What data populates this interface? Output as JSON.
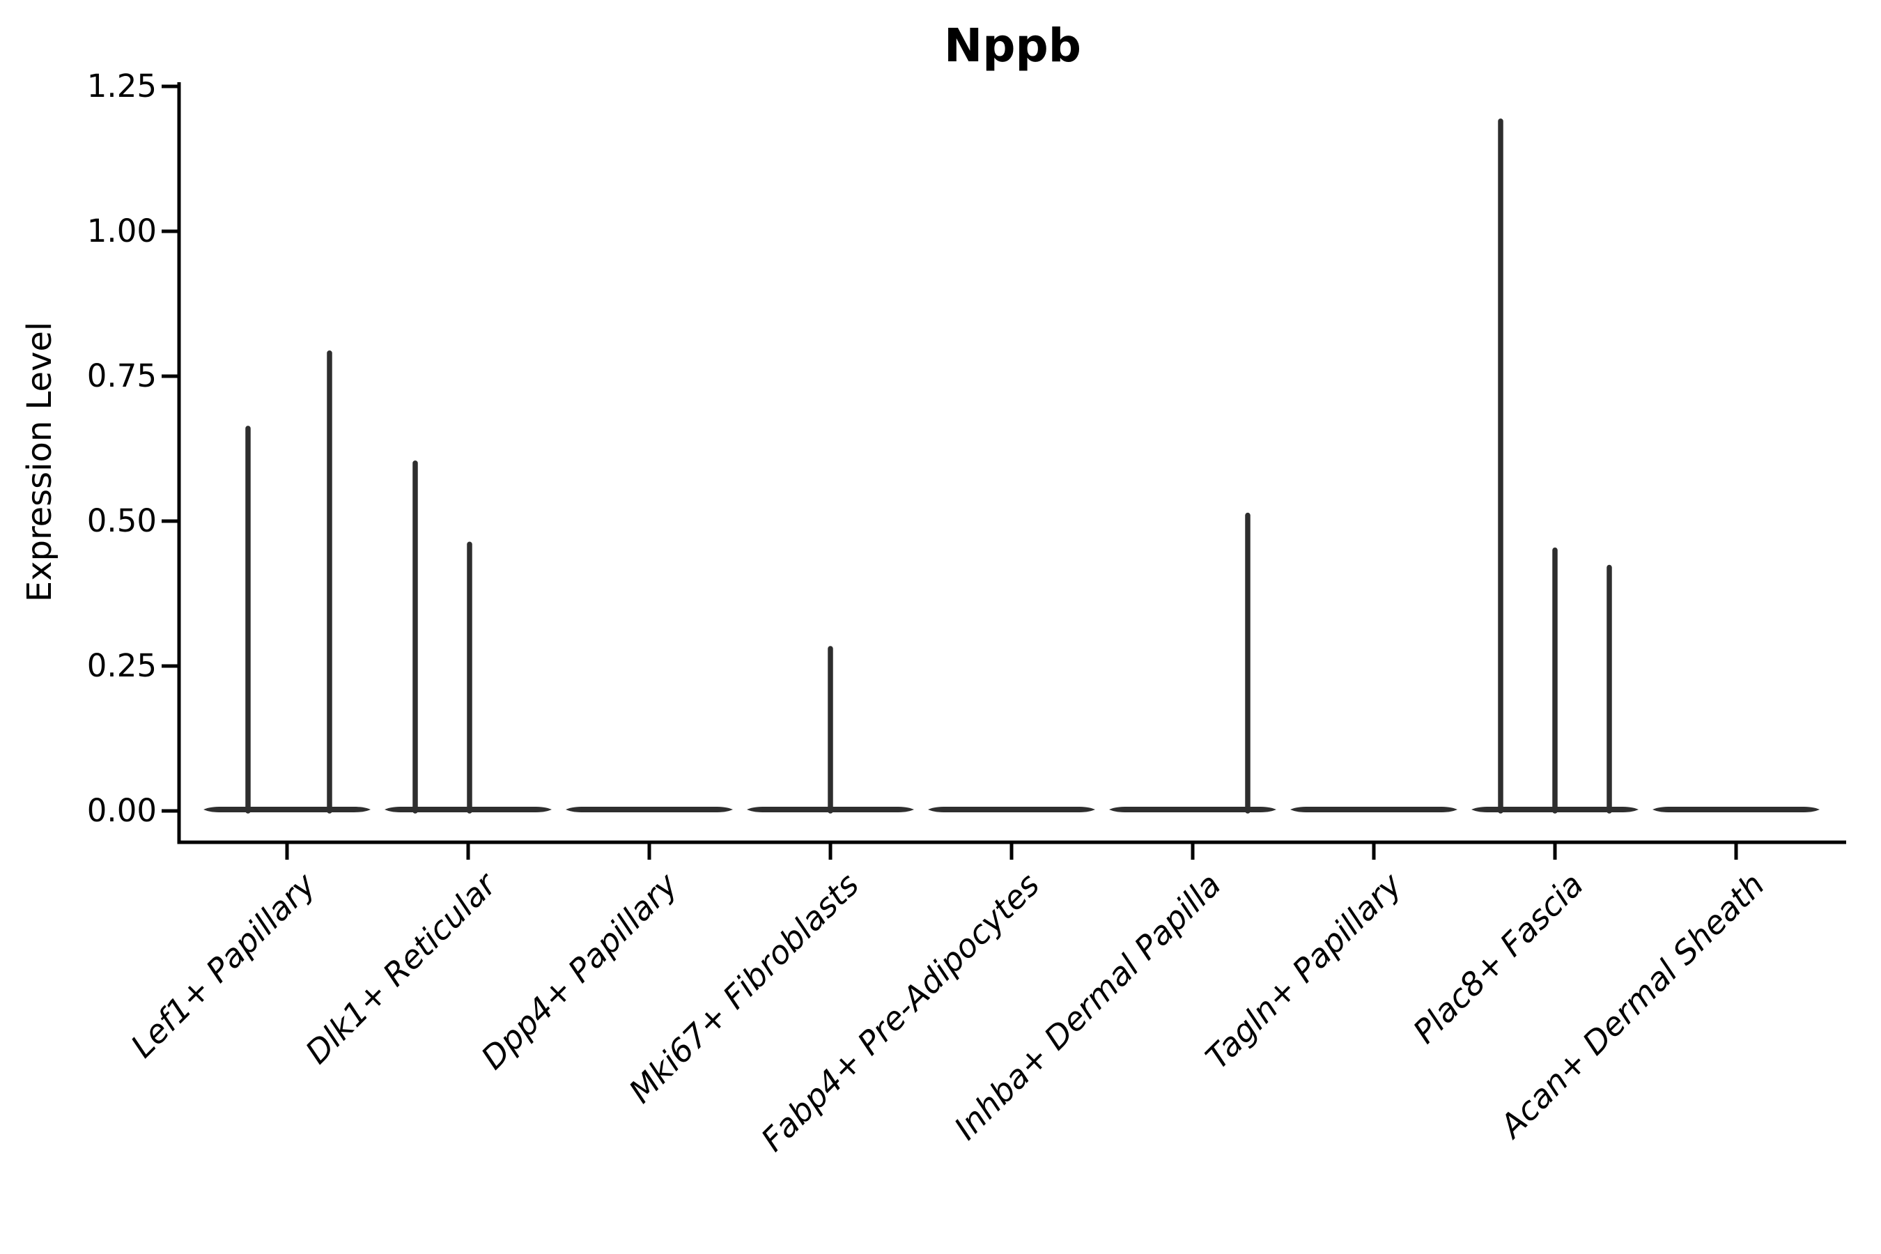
{
  "chart_data": {
    "type": "violin",
    "title": "Nppb",
    "ylabel": "Expression Level",
    "xlabel": "",
    "ylim": [
      0,
      1.25
    ],
    "yticks": [
      "1.25",
      "1.00",
      "0.75",
      "0.50",
      "0.25",
      "0.00"
    ],
    "ytick_values": [
      1.25,
      1.0,
      0.75,
      0.5,
      0.25,
      0.0
    ],
    "grid": "off",
    "legend": "none",
    "violin_color": "#2e2e2e",
    "axis_color": "#000000",
    "categories": [
      {
        "label": "Lef1+ Papillary",
        "spikes": [
          {
            "dx": -56,
            "value": 0.66
          },
          {
            "dx": 61,
            "value": 0.79
          }
        ]
      },
      {
        "label": "Dlk1+ Reticular",
        "spikes": [
          {
            "dx": -76,
            "value": 0.6
          },
          {
            "dx": 2,
            "value": 0.46
          }
        ]
      },
      {
        "label": "Dpp4+ Papillary",
        "spikes": []
      },
      {
        "label": "Mki67+ Fibroblasts",
        "spikes": [
          {
            "dx": 0,
            "value": 0.28
          }
        ]
      },
      {
        "label": "Fabp4+ Pre-Adipocytes",
        "spikes": []
      },
      {
        "label": "Inhba+ Dermal Papilla",
        "spikes": [
          {
            "dx": 79,
            "value": 0.51
          }
        ]
      },
      {
        "label": "Tagln+ Papillary",
        "spikes": []
      },
      {
        "label": "Plac8+ Fascia",
        "spikes": [
          {
            "dx": -78,
            "value": 1.19
          },
          {
            "dx": 0,
            "value": 0.45
          },
          {
            "dx": 78,
            "value": 0.42
          }
        ]
      },
      {
        "label": "Acan+ Dermal Sheath",
        "spikes": []
      }
    ]
  }
}
